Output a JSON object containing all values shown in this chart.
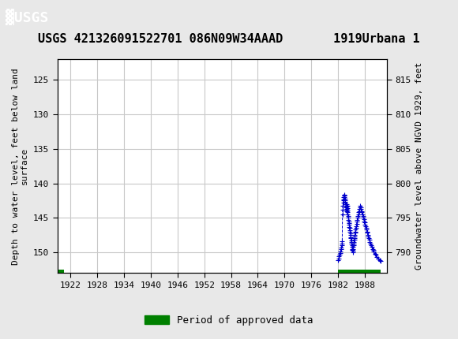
{
  "title": "USGS 421326091522701 086N09W34AAAD       1919Urbana 1",
  "ylabel_left": "Depth to water level, feet below land\nsurface",
  "ylabel_right": "Groundwater level above NGVD 1929, feet",
  "xlim": [
    1919.0,
    1993.0
  ],
  "ylim_left": [
    122.0,
    153.0
  ],
  "ylim_right": [
    787.0,
    818.0
  ],
  "xticks": [
    1922,
    1928,
    1934,
    1940,
    1946,
    1952,
    1958,
    1964,
    1970,
    1976,
    1982,
    1988
  ],
  "yticks_left": [
    125,
    130,
    135,
    140,
    145,
    150
  ],
  "yticks_right": [
    815,
    810,
    805,
    800,
    795,
    790
  ],
  "grid_color": "#c8c8c8",
  "bg_color": "#e8e8e8",
  "plot_bg": "#ffffff",
  "data_color": "#0000cc",
  "bar_color": "#008000",
  "header_bg": "#1a6b3a",
  "header_text": "#ffffff",
  "font_family": "monospace",
  "legend_label": "Period of approved data",
  "title_fontsize": 11,
  "axis_fontsize": 8,
  "tick_fontsize": 8,
  "bar1_start": 1919.3,
  "bar1_end": 1920.5,
  "bar2_start": 1982.0,
  "bar2_end": 1991.5,
  "data_points_x": [
    1982.05,
    1982.15,
    1982.25,
    1982.35,
    1982.45,
    1982.55,
    1982.65,
    1982.72,
    1982.82,
    1982.9,
    1982.95,
    1983.0,
    1983.05,
    1983.1,
    1983.15,
    1983.2,
    1983.25,
    1983.3,
    1983.35,
    1983.4,
    1983.45,
    1983.5,
    1983.55,
    1983.6,
    1983.65,
    1983.7,
    1983.75,
    1983.8,
    1983.85,
    1983.9,
    1983.93,
    1983.96,
    1983.99,
    1984.02,
    1984.05,
    1984.08,
    1984.12,
    1984.16,
    1984.2,
    1984.25,
    1984.3,
    1984.35,
    1984.4,
    1984.45,
    1984.5,
    1984.55,
    1984.6,
    1984.65,
    1984.7,
    1984.75,
    1984.8,
    1984.85,
    1984.9,
    1984.95,
    1985.0,
    1985.05,
    1985.1,
    1985.15,
    1985.2,
    1985.25,
    1985.3,
    1985.35,
    1985.4,
    1985.45,
    1985.5,
    1985.55,
    1985.6,
    1985.65,
    1985.7,
    1985.75,
    1985.8,
    1985.85,
    1985.9,
    1985.95,
    1986.0,
    1986.08,
    1986.16,
    1986.25,
    1986.33,
    1986.42,
    1986.5,
    1986.58,
    1986.67,
    1986.75,
    1986.83,
    1986.92,
    1987.0,
    1987.1,
    1987.2,
    1987.3,
    1987.4,
    1987.5,
    1987.6,
    1987.7,
    1987.8,
    1987.9,
    1988.0,
    1988.1,
    1988.2,
    1988.3,
    1988.4,
    1988.5,
    1988.6,
    1988.7,
    1988.8,
    1988.9,
    1989.0,
    1989.15,
    1989.3,
    1989.45,
    1989.6,
    1989.75,
    1989.9,
    1990.0,
    1990.25,
    1990.5,
    1990.75,
    1991.0,
    1991.3,
    1991.6
  ],
  "data_points_y": [
    151.2,
    150.9,
    150.6,
    150.4,
    150.1,
    149.9,
    149.6,
    149.3,
    149.0,
    148.7,
    148.4,
    144.5,
    143.8,
    143.2,
    142.8,
    142.5,
    142.3,
    142.0,
    141.8,
    141.6,
    141.8,
    142.0,
    142.2,
    142.5,
    142.7,
    143.0,
    143.2,
    143.5,
    143.8,
    144.0,
    143.7,
    143.4,
    143.2,
    143.0,
    143.3,
    143.6,
    143.9,
    144.2,
    144.5,
    144.8,
    145.0,
    145.3,
    145.5,
    145.8,
    146.0,
    146.3,
    146.5,
    146.8,
    147.0,
    147.3,
    147.5,
    147.8,
    148.0,
    148.3,
    148.5,
    148.7,
    149.0,
    149.2,
    149.5,
    149.7,
    150.0,
    149.8,
    149.5,
    149.2,
    149.0,
    148.7,
    148.5,
    148.2,
    148.0,
    147.7,
    147.5,
    147.2,
    147.0,
    146.7,
    146.5,
    146.2,
    145.9,
    145.6,
    145.3,
    145.0,
    144.7,
    144.5,
    144.2,
    144.0,
    143.7,
    143.5,
    143.2,
    143.5,
    143.7,
    144.0,
    144.2,
    144.5,
    144.7,
    145.0,
    145.2,
    145.5,
    145.7,
    146.0,
    146.2,
    146.5,
    146.7,
    147.0,
    147.2,
    147.5,
    147.7,
    148.0,
    148.2,
    148.5,
    148.7,
    149.0,
    149.2,
    149.5,
    149.7,
    149.9,
    150.2,
    150.4,
    150.7,
    150.9,
    151.1,
    151.3
  ]
}
